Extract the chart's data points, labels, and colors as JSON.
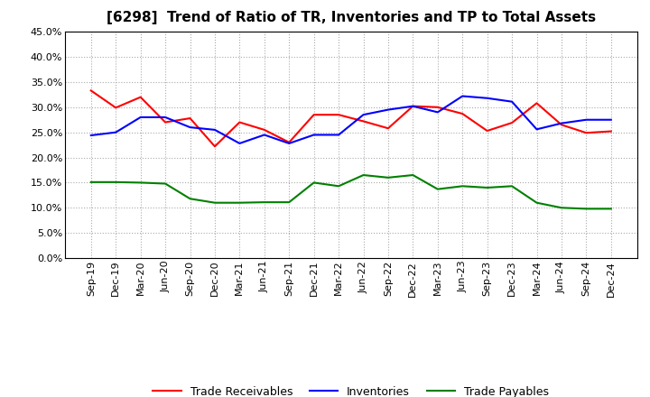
{
  "title": "[6298]  Trend of Ratio of TR, Inventories and TP to Total Assets",
  "labels": [
    "Sep-19",
    "Dec-19",
    "Mar-20",
    "Jun-20",
    "Sep-20",
    "Dec-20",
    "Mar-21",
    "Jun-21",
    "Sep-21",
    "Dec-21",
    "Mar-22",
    "Jun-22",
    "Sep-22",
    "Dec-22",
    "Mar-23",
    "Jun-23",
    "Sep-23",
    "Dec-23",
    "Mar-24",
    "Jun-24",
    "Sep-24",
    "Dec-24"
  ],
  "trade_receivables": [
    0.333,
    0.299,
    0.32,
    0.27,
    0.278,
    0.222,
    0.27,
    0.255,
    0.23,
    0.285,
    0.285,
    0.272,
    0.258,
    0.302,
    0.3,
    0.287,
    0.253,
    0.269,
    0.308,
    0.265,
    0.249,
    0.252
  ],
  "inventories": [
    0.244,
    0.25,
    0.28,
    0.28,
    0.26,
    0.255,
    0.228,
    0.245,
    0.228,
    0.245,
    0.245,
    0.285,
    0.295,
    0.302,
    0.29,
    0.322,
    0.318,
    0.311,
    0.256,
    0.268,
    0.275,
    0.275
  ],
  "trade_payables": [
    0.151,
    0.151,
    0.15,
    0.148,
    0.118,
    0.11,
    0.11,
    0.111,
    0.111,
    0.15,
    0.143,
    0.165,
    0.16,
    0.165,
    0.137,
    0.143,
    0.14,
    0.143,
    0.11,
    0.1,
    0.098,
    0.098
  ],
  "tr_color": "#ff0000",
  "inv_color": "#0000ff",
  "tp_color": "#008000",
  "ylim": [
    0.0,
    0.45
  ],
  "yticks": [
    0.0,
    0.05,
    0.1,
    0.15,
    0.2,
    0.25,
    0.3,
    0.35,
    0.4,
    0.45
  ],
  "background_color": "#ffffff",
  "grid_color": "#aaaaaa",
  "legend_tr": "Trade Receivables",
  "legend_inv": "Inventories",
  "legend_tp": "Trade Payables"
}
